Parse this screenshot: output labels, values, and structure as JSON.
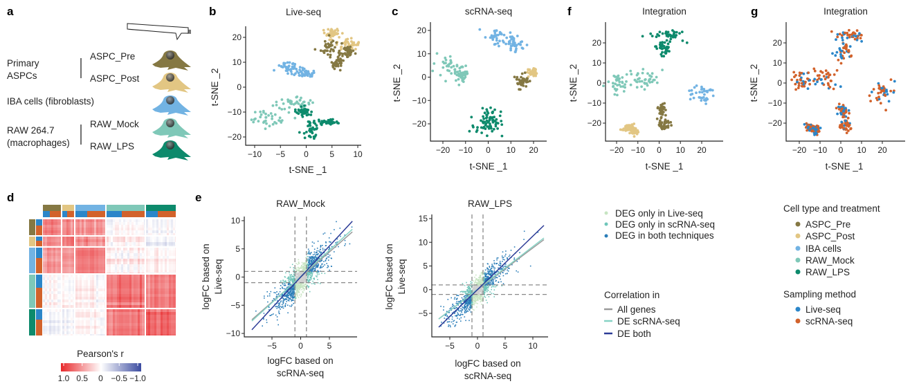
{
  "panel_labels": {
    "a": "a",
    "b": "b",
    "c": "c",
    "d": "d",
    "e": "e",
    "f": "f",
    "g": "g"
  },
  "panel_a": {
    "primary": [
      "Primary",
      "ASPCs"
    ],
    "iba": "IBA cells (fibroblasts)",
    "raw": [
      "RAW 264.7",
      "(macrophages)"
    ],
    "cells": [
      {
        "name": "ASPC_Pre",
        "color": "#857843"
      },
      {
        "name": "ASPC_Post",
        "color": "#e2c683"
      },
      {
        "name": "",
        "color": "#72b3e3"
      },
      {
        "name": "RAW_Mock",
        "color": "#7fc8b8"
      },
      {
        "name": "RAW_LPS",
        "color": "#0d8a6c"
      }
    ]
  },
  "colors": {
    "ASPC_Pre": "#857843",
    "ASPC_Post": "#e2c683",
    "IBA cells": "#72b3e3",
    "RAW_Mock": "#7fc8b8",
    "RAW_LPS": "#0d8a6c",
    "Live-seq": "#2b86c9",
    "scRNA-seq": "#d2622b"
  },
  "legend_deg": {
    "items": [
      {
        "name": "DEG only in Live-seq",
        "color": "#c7e5c2"
      },
      {
        "name": "DEG only in scRNA-seq",
        "color": "#6fc6ba"
      },
      {
        "name": "DEG in both techniques",
        "color": "#2a7db8"
      }
    ]
  },
  "legend_correlation": {
    "title": "Correlation in",
    "items": [
      {
        "name": "All genes",
        "color": "#9a9a9a"
      },
      {
        "name": "DE scRNA-seq",
        "color": "#86d3c5"
      },
      {
        "name": "DE both",
        "color": "#2c3b96"
      }
    ]
  },
  "legend_cell_type": {
    "title": "Cell type and treatment",
    "items": [
      {
        "name": "ASPC_Pre",
        "color": "#857843"
      },
      {
        "name": "ASPC_Post",
        "color": "#e2c683"
      },
      {
        "name": "IBA cells",
        "color": "#72b3e3"
      },
      {
        "name": "RAW_Mock",
        "color": "#7fc8b8"
      },
      {
        "name": "RAW_LPS",
        "color": "#0d8a6c"
      }
    ]
  },
  "legend_sampling": {
    "title": "Sampling method",
    "items": [
      {
        "name": "Live-seq",
        "color": "#2b86c9"
      },
      {
        "name": "scRNA-seq",
        "color": "#d2622b"
      }
    ]
  },
  "chart_data": [
    {
      "id": "b",
      "type": "scatter",
      "title": "Live-seq",
      "xlabel": "t-SNE _1",
      "ylabel": "t-SNE _2",
      "xticks": [
        -10,
        -5,
        0,
        5,
        10
      ],
      "yticks": [
        -20,
        -10,
        0,
        10,
        20
      ],
      "color_by": "cell type",
      "clusters": [
        {
          "group": "ASPC_Post",
          "center": [
            5,
            21
          ],
          "spread": [
            1,
            1.2
          ]
        },
        {
          "group": "ASPC_Post",
          "center": [
            8,
            17
          ],
          "spread": [
            1,
            1.2
          ]
        },
        {
          "group": "ASPC_Pre",
          "center": [
            4.5,
            16
          ],
          "spread": [
            1.2,
            2
          ]
        },
        {
          "group": "ASPC_Pre",
          "center": [
            6,
            10
          ],
          "spread": [
            0.6,
            1.5
          ]
        },
        {
          "group": "ASPC_Pre",
          "center": [
            8,
            14
          ],
          "spread": [
            0.6,
            1
          ]
        },
        {
          "group": "IBA cells",
          "center": [
            -3.5,
            8
          ],
          "spread": [
            1.2,
            1
          ]
        },
        {
          "group": "IBA cells",
          "center": [
            -0.5,
            5.5
          ],
          "spread": [
            1,
            0.8
          ]
        },
        {
          "group": "RAW_Mock",
          "center": [
            -7.5,
            -12
          ],
          "spread": [
            2,
            2
          ]
        },
        {
          "group": "RAW_Mock",
          "center": [
            -2,
            -6.5
          ],
          "spread": [
            1.5,
            1.5
          ]
        },
        {
          "group": "RAW_LPS",
          "center": [
            1,
            -17
          ],
          "spread": [
            0.8,
            2
          ]
        },
        {
          "group": "RAW_LPS",
          "center": [
            4,
            -14
          ],
          "spread": [
            1,
            0.6
          ]
        },
        {
          "group": "RAW_LPS",
          "center": [
            -0.5,
            -10
          ],
          "spread": [
            0.8,
            1
          ]
        }
      ]
    },
    {
      "id": "c",
      "type": "scatter",
      "title": "scRNA-seq",
      "xlabel": "t-SNE _1",
      "ylabel": "t-SNE _2",
      "xticks": [
        -20,
        -10,
        0,
        10,
        20
      ],
      "yticks": [
        -20,
        -10,
        0,
        10,
        20
      ],
      "color_by": "cell type",
      "clusters": [
        {
          "group": "IBA cells",
          "center": [
            4,
            17
          ],
          "spread": [
            2.5,
            2
          ]
        },
        {
          "group": "IBA cells",
          "center": [
            12,
            14
          ],
          "spread": [
            2,
            2
          ]
        },
        {
          "group": "RAW_Mock",
          "center": [
            -17,
            4
          ],
          "spread": [
            2.5,
            3
          ]
        },
        {
          "group": "RAW_Mock",
          "center": [
            -12,
            1
          ],
          "spread": [
            1.5,
            1.5
          ]
        },
        {
          "group": "ASPC_Post",
          "center": [
            19.5,
            2
          ],
          "spread": [
            1.5,
            0.8
          ]
        },
        {
          "group": "ASPC_Pre",
          "center": [
            15,
            -2
          ],
          "spread": [
            1.5,
            1.5
          ]
        },
        {
          "group": "RAW_LPS",
          "center": [
            -1,
            -21
          ],
          "spread": [
            3,
            2.5
          ]
        },
        {
          "group": "RAW_LPS",
          "center": [
            2,
            -17
          ],
          "spread": [
            2,
            2
          ]
        }
      ]
    },
    {
      "id": "f",
      "type": "scatter",
      "title": "Integration",
      "xlabel": "t-SNE _1",
      "ylabel": "t-SNE _2",
      "xticks": [
        -20,
        -10,
        0,
        10,
        20
      ],
      "yticks": [
        -20,
        -10,
        0,
        10,
        20
      ],
      "color_by": "cell type",
      "clusters": [
        {
          "group": "RAW_LPS",
          "center": [
            5,
            24
          ],
          "spread": [
            4,
            1.3
          ]
        },
        {
          "group": "RAW_LPS",
          "center": [
            2,
            17
          ],
          "spread": [
            2,
            2.5
          ]
        },
        {
          "group": "RAW_Mock",
          "center": [
            -19,
            1
          ],
          "spread": [
            2.5,
            2.5
          ]
        },
        {
          "group": "RAW_Mock",
          "center": [
            -8,
            2
          ],
          "spread": [
            3.5,
            2.5
          ]
        },
        {
          "group": "IBA cells",
          "center": [
            20,
            -5
          ],
          "spread": [
            3,
            3
          ]
        },
        {
          "group": "ASPC_Pre",
          "center": [
            1,
            -14
          ],
          "spread": [
            1.2,
            2
          ]
        },
        {
          "group": "ASPC_Pre",
          "center": [
            2,
            -21
          ],
          "spread": [
            1.5,
            1.5
          ]
        },
        {
          "group": "ASPC_Post",
          "center": [
            -15,
            -22
          ],
          "spread": [
            1.5,
            1
          ]
        },
        {
          "group": "ASPC_Post",
          "center": [
            -12,
            -24
          ],
          "spread": [
            1,
            1
          ]
        }
      ]
    },
    {
      "id": "g",
      "type": "scatter",
      "title": "Integration",
      "xlabel": "t-SNE _1",
      "ylabel": "t-SNE _2",
      "xticks": [
        -20,
        -10,
        0,
        10,
        20
      ],
      "yticks": [
        -20,
        -10,
        0,
        10,
        20
      ],
      "color_by": "sampling method",
      "clusters": [
        {
          "center": [
            5,
            24
          ],
          "spread": [
            4,
            1.3
          ]
        },
        {
          "center": [
            2,
            17
          ],
          "spread": [
            2,
            2.5
          ]
        },
        {
          "center": [
            -19,
            1
          ],
          "spread": [
            2.5,
            2.5
          ]
        },
        {
          "center": [
            -8,
            2
          ],
          "spread": [
            3.5,
            2.5
          ]
        },
        {
          "center": [
            20,
            -5
          ],
          "spread": [
            3,
            3
          ]
        },
        {
          "center": [
            1,
            -14
          ],
          "spread": [
            1.2,
            2
          ]
        },
        {
          "center": [
            2,
            -21
          ],
          "spread": [
            1.5,
            1.5
          ]
        },
        {
          "center": [
            -15,
            -22
          ],
          "spread": [
            1.5,
            1
          ]
        },
        {
          "center": [
            -12,
            -24
          ],
          "spread": [
            1,
            1
          ]
        }
      ]
    },
    {
      "id": "d",
      "type": "heatmap",
      "groups": [
        "ASPC_Pre",
        "ASPC_Post",
        "IBA cells",
        "RAW_Mock",
        "RAW_LPS"
      ],
      "sampling_annotation": [
        "Live-seq",
        "scRNA-seq"
      ],
      "block_mean_r": [
        [
          0.6,
          0.55,
          0.5,
          0.05,
          -0.04
        ],
        [
          0.55,
          0.6,
          0.48,
          0.04,
          -0.05
        ],
        [
          0.5,
          0.48,
          0.58,
          0.06,
          0.02
        ],
        [
          0.05,
          0.04,
          0.06,
          0.62,
          0.58
        ],
        [
          -0.04,
          -0.05,
          0.02,
          0.58,
          0.68
        ]
      ],
      "colorbar": {
        "title": "Pearson's r",
        "range": [
          1.0,
          -1.0
        ],
        "ticks": [
          1.0,
          0.5,
          0,
          -0.5,
          -1.0
        ],
        "tick_labels": [
          "1.0",
          "0.5",
          "0",
          "−0.5",
          "−1.0"
        ]
      }
    },
    {
      "id": "e_mock",
      "type": "scatter",
      "title": "RAW_Mock",
      "xlabel": [
        "logFC based on",
        "scRNA-seq"
      ],
      "ylabel": [
        "logFC based on",
        "Live-seq"
      ],
      "xticks": [
        -5,
        0,
        5
      ],
      "yticks": [
        -10,
        -5,
        0,
        5,
        10
      ],
      "xlim": [
        -8.5,
        9
      ],
      "ylim": [
        -10,
        10
      ],
      "thresholds": [
        -1,
        1
      ],
      "fits": [
        {
          "name": "All genes",
          "slope": 0.89,
          "intercept": 0
        },
        {
          "name": "DE scRNA-seq",
          "slope": 0.93,
          "intercept": 0.1
        },
        {
          "name": "DE both",
          "slope": 1.1,
          "intercept": 0
        }
      ]
    },
    {
      "id": "e_lps",
      "type": "scatter",
      "title": "RAW_LPS",
      "xlabel": [
        "logFC based on",
        "scRNA-seq"
      ],
      "ylabel": [
        "logFC based on",
        "Live-seq"
      ],
      "xticks": [
        -5,
        0,
        5,
        10
      ],
      "yticks": [
        -5,
        0,
        5,
        10,
        15
      ],
      "xlim": [
        -7,
        12
      ],
      "ylim": [
        -8.5,
        15
      ],
      "thresholds": [
        -1,
        1
      ],
      "fits": [
        {
          "name": "All genes",
          "slope": 0.88,
          "intercept": 0
        },
        {
          "name": "DE scRNA-seq",
          "slope": 0.9,
          "intercept": 0.1
        },
        {
          "name": "DE both",
          "slope": 1.13,
          "intercept": 0
        }
      ]
    }
  ]
}
